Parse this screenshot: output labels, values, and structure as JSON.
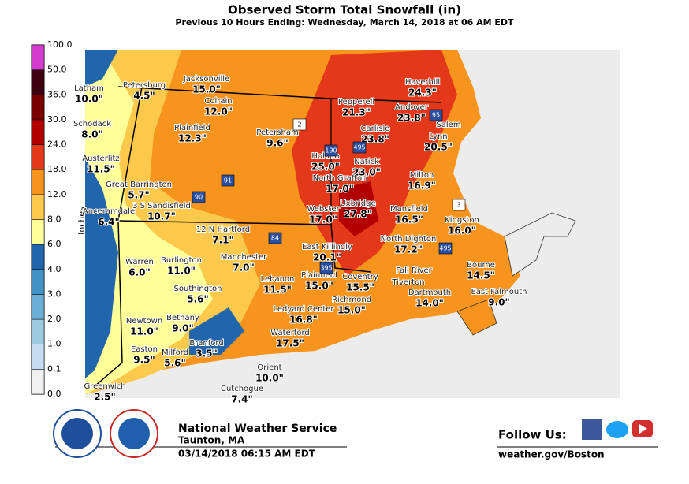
{
  "header": {
    "title": "Observed Storm Total Snowfall (in)",
    "subtitle": "Previous 10 Hours Ending: Wednesday, March 14, 2018 at 06 AM EDT"
  },
  "legend": {
    "axis_label": "Inches",
    "levels": [
      "0.0",
      "0.1",
      "1.0",
      "2.0",
      "3.0",
      "4.0",
      "6.0",
      "8.0",
      "12.0",
      "18.0",
      "24.0",
      "30.0",
      "36.0",
      "50.0",
      "100.0"
    ],
    "colors": [
      "#f0f0f0",
      "#c6dbef",
      "#9ecae1",
      "#6baed6",
      "#4292c6",
      "#2166ac",
      "#ffff99",
      "#fdc94c",
      "#f7941d",
      "#e4381b",
      "#b30000",
      "#7a0000",
      "#3d0010",
      "#d33ccf"
    ]
  },
  "stations": [
    {
      "name": "Latham",
      "value": "10.0\""
    },
    {
      "name": "Petersburg",
      "value": "4.5\""
    },
    {
      "name": "Jacksonville",
      "value": "15.0\""
    },
    {
      "name": "Colrain",
      "value": "12.0\""
    },
    {
      "name": "Schodack",
      "value": "8.0\""
    },
    {
      "name": "Plainfield",
      "value": "12.3\""
    },
    {
      "name": "Petersham",
      "value": "9.6\""
    },
    {
      "name": "Pepperell",
      "value": "21.3\""
    },
    {
      "name": "Haverhill",
      "value": "24.3\""
    },
    {
      "name": "Andover",
      "value": "23.8\""
    },
    {
      "name": "Salem"
    },
    {
      "name": "Carlisle",
      "value": "23.8\""
    },
    {
      "name": "Lynn",
      "value": "20.5\""
    },
    {
      "name": "Austerlitz",
      "value": "11.5\""
    },
    {
      "name": "Holden",
      "value": "25.0\""
    },
    {
      "name": "Natick",
      "value": "23.0\""
    },
    {
      "name": "Milton",
      "value": "16.9\""
    },
    {
      "name": "North Grafton",
      "value": "17.0\""
    },
    {
      "name": "Great Barrington",
      "value": "5.7\""
    },
    {
      "name": "3 S Sandisfield",
      "value": "10.7\""
    },
    {
      "name": "Anceramdale",
      "value": "6.4\""
    },
    {
      "name": "Webster",
      "value": "17.0\""
    },
    {
      "name": "Uxbridge",
      "value": "27.8\""
    },
    {
      "name": "Mansfield",
      "value": "16.5\""
    },
    {
      "name": "Kingston",
      "value": "16.0\""
    },
    {
      "name": "12 N Hartford",
      "value": "7.1\""
    },
    {
      "name": "East Killingly",
      "value": "20.1\""
    },
    {
      "name": "North Dighton",
      "value": "17.2\""
    },
    {
      "name": "Warren",
      "value": "6.0\""
    },
    {
      "name": "Burlington",
      "value": "11.0\""
    },
    {
      "name": "Manchester",
      "value": "7.0\""
    },
    {
      "name": "Lebanon",
      "value": "11.5\""
    },
    {
      "name": "Plainfield",
      "value": "15.0\""
    },
    {
      "name": "Coventry",
      "value": "15.5\""
    },
    {
      "name": "Fall River"
    },
    {
      "name": "Tiverton"
    },
    {
      "name": "Bourne",
      "value": "14.5\""
    },
    {
      "name": "Southington",
      "value": "5.6\""
    },
    {
      "name": "Richmond",
      "value": "15.0\""
    },
    {
      "name": "Dartmouth",
      "value": "14.0\""
    },
    {
      "name": "East Falmouth",
      "value": "9.0\""
    },
    {
      "name": "Newtown",
      "value": "11.0\""
    },
    {
      "name": "Bethany",
      "value": "9.0\""
    },
    {
      "name": "Ledyard Center",
      "value": "16.8\""
    },
    {
      "name": "Waterford",
      "value": "17.5\""
    },
    {
      "name": "Easton",
      "value": "9.5\""
    },
    {
      "name": "Milford",
      "value": "5.6\""
    },
    {
      "name": "Branford",
      "value": "3.5\""
    },
    {
      "name": "Orient",
      "value": "10.0\""
    },
    {
      "name": "Greenwich",
      "value": "2.5\""
    },
    {
      "name": "Cutchogue",
      "value": "7.4\""
    }
  ],
  "shields": [
    "2",
    "3",
    "90",
    "91",
    "84",
    "95",
    "495",
    "190",
    "395",
    "495"
  ],
  "footer": {
    "agency": "National Weather Service",
    "office": "Taunton, MA",
    "issued": "03/14/2018 06:15 AM EDT",
    "follow": "Follow Us:",
    "website": "weather.gov/Boston"
  }
}
